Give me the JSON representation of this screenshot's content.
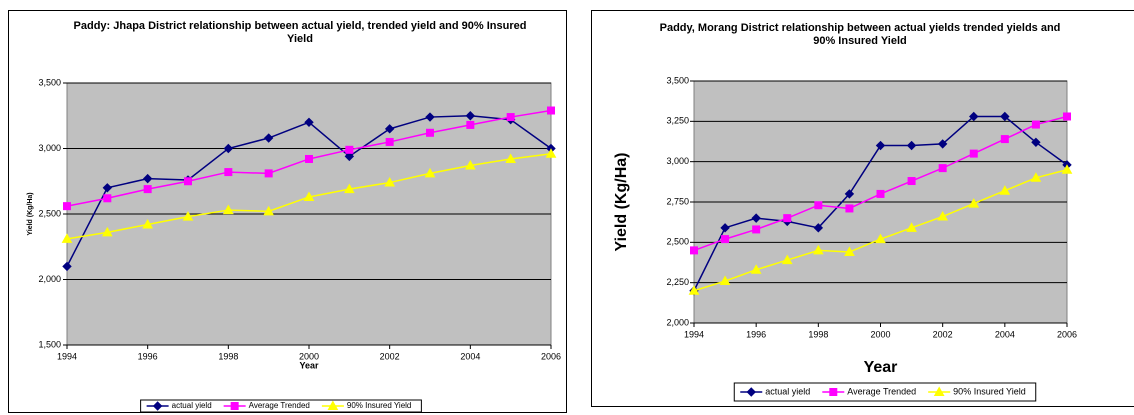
{
  "chart_data": [
    {
      "type": "line",
      "title": "Paddy: Jhapa District relationship between actual yield, trended yield and 90% Insured Yield",
      "x_label": "Year",
      "y_label": "Yield (Kg/Ha)",
      "x": [
        1994,
        1995,
        1996,
        1997,
        1998,
        1999,
        2000,
        2001,
        2002,
        2003,
        2004,
        2005,
        2006
      ],
      "xlim": [
        1994,
        2006
      ],
      "xticks": [
        1994,
        1996,
        1998,
        2000,
        2002,
        2004,
        2006
      ],
      "ylim": [
        1500,
        3500
      ],
      "yticks": [
        {
          "value": 1500,
          "label": "1,500"
        },
        {
          "value": 2000,
          "label": "2,000"
        },
        {
          "value": 2500,
          "label": "2,500"
        },
        {
          "value": 3000,
          "label": "3,000"
        },
        {
          "value": 3500,
          "label": "3,500"
        }
      ],
      "grid": true,
      "legend": "bottom",
      "plot_background": "#c0c0c0",
      "series": [
        {
          "name": "actual yield",
          "color": "#000080",
          "marker": "diamond",
          "values": [
            2100,
            2700,
            2770,
            2760,
            3000,
            3080,
            3200,
            2940,
            3150,
            3240,
            3250,
            3220,
            3000
          ]
        },
        {
          "name": "Average Trended",
          "color": "#ff00ff",
          "marker": "square",
          "values": [
            2560,
            2620,
            2690,
            2750,
            2820,
            2810,
            2920,
            2990,
            3050,
            3120,
            3180,
            3240,
            3290
          ]
        },
        {
          "name": "90% Insured Yield",
          "color": "#ffff00",
          "marker": "triangle",
          "values": [
            2310,
            2360,
            2420,
            2480,
            2530,
            2520,
            2630,
            2690,
            2740,
            2810,
            2870,
            2920,
            2960
          ]
        }
      ]
    },
    {
      "type": "line",
      "title": "Paddy, Morang District relationship between actual yields trended yields and 90% Insured Yield",
      "x_label": "Year",
      "y_label": "Yield (Kg/Ha)",
      "x": [
        1994,
        1995,
        1996,
        1997,
        1998,
        1999,
        2000,
        2001,
        2002,
        2003,
        2004,
        2005,
        2006
      ],
      "xlim": [
        1994,
        2006
      ],
      "xticks": [
        1994,
        1996,
        1998,
        2000,
        2002,
        2004,
        2006
      ],
      "ylim": [
        2000,
        3500
      ],
      "yticks": [
        {
          "value": 2000,
          "label": "2,000"
        },
        {
          "value": 2250,
          "label": "2,250"
        },
        {
          "value": 2500,
          "label": "2,500"
        },
        {
          "value": 2750,
          "label": "2,750"
        },
        {
          "value": 3000,
          "label": "3,000"
        },
        {
          "value": 3250,
          "label": "3,250"
        },
        {
          "value": 3500,
          "label": "3,500"
        }
      ],
      "grid": true,
      "legend": "bottom",
      "plot_background": "#c0c0c0",
      "series": [
        {
          "name": "actual yield",
          "color": "#000080",
          "marker": "diamond",
          "values": [
            2200,
            2590,
            2650,
            2630,
            2590,
            2800,
            3100,
            3100,
            3110,
            3280,
            3280,
            3120,
            2980
          ]
        },
        {
          "name": "Average Trended",
          "color": "#ff00ff",
          "marker": "square",
          "values": [
            2450,
            2520,
            2580,
            2650,
            2730,
            2710,
            2800,
            2880,
            2960,
            3050,
            3140,
            3230,
            3280
          ]
        },
        {
          "name": "90% Insured Yield",
          "color": "#ffff00",
          "marker": "triangle",
          "values": [
            2200,
            2260,
            2330,
            2390,
            2450,
            2440,
            2520,
            2590,
            2660,
            2740,
            2820,
            2900,
            2950
          ]
        }
      ]
    }
  ]
}
